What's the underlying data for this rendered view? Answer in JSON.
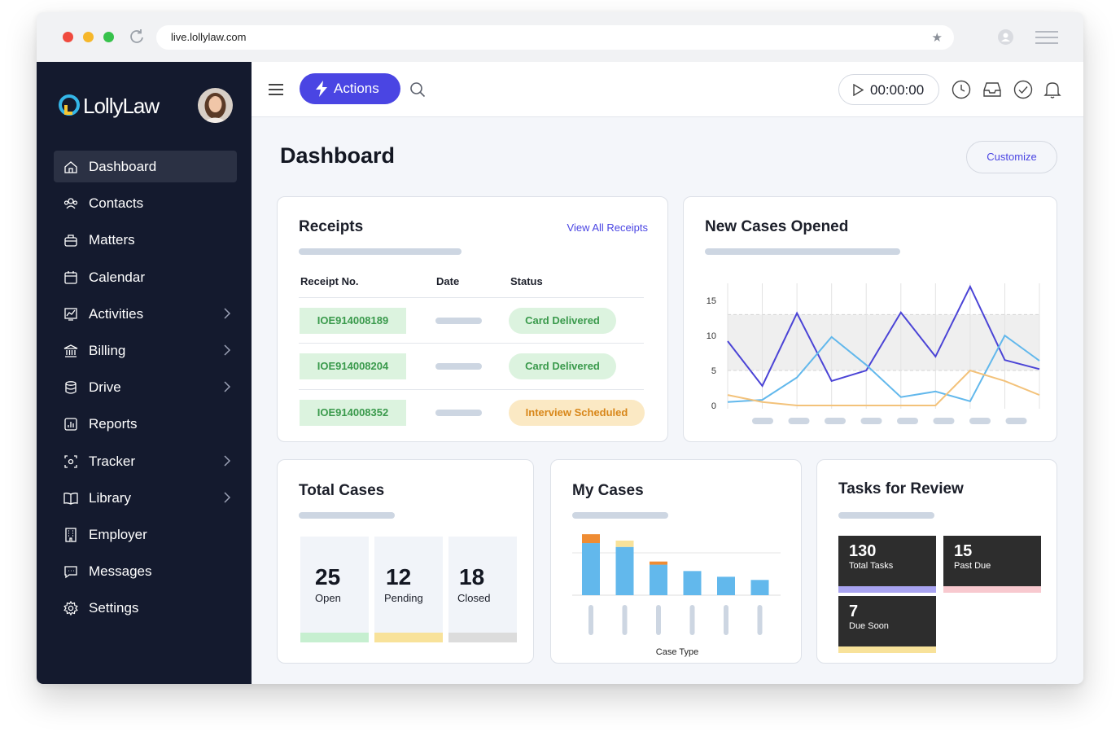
{
  "browser": {
    "url": "live.lollylaw.com",
    "dots": [
      "#f04a3e",
      "#f6b72a",
      "#37c24b"
    ]
  },
  "sidebar": {
    "logo_text": "LollyLaw",
    "items": [
      {
        "label": "Dashboard",
        "icon": "home-icon",
        "active": true,
        "chevron": false
      },
      {
        "label": "Contacts",
        "icon": "contacts-icon",
        "active": false,
        "chevron": false
      },
      {
        "label": "Matters",
        "icon": "briefcase-icon",
        "active": false,
        "chevron": false
      },
      {
        "label": "Calendar",
        "icon": "calendar-icon",
        "active": false,
        "chevron": false
      },
      {
        "label": "Activities",
        "icon": "activities-icon",
        "active": false,
        "chevron": true
      },
      {
        "label": "Billing",
        "icon": "bank-icon",
        "active": false,
        "chevron": true
      },
      {
        "label": "Drive",
        "icon": "database-icon",
        "active": false,
        "chevron": true
      },
      {
        "label": "Reports",
        "icon": "reports-icon",
        "active": false,
        "chevron": false
      },
      {
        "label": "Tracker",
        "icon": "tracker-icon",
        "active": false,
        "chevron": true
      },
      {
        "label": "Library",
        "icon": "book-icon",
        "active": false,
        "chevron": true
      },
      {
        "label": "Employer",
        "icon": "building-icon",
        "active": false,
        "chevron": false
      },
      {
        "label": "Messages",
        "icon": "chat-icon",
        "active": false,
        "chevron": false
      },
      {
        "label": "Settings",
        "icon": "gear-icon",
        "active": false,
        "chevron": false
      }
    ]
  },
  "topbar": {
    "actions_label": "Actions",
    "timer": "00:00:00",
    "accent": "#4a45e3"
  },
  "page": {
    "title": "Dashboard",
    "customize_label": "Customize"
  },
  "receipts": {
    "title": "Receipts",
    "view_all": "View All Receipts",
    "columns": [
      "Receipt No.",
      "Date",
      "Status"
    ],
    "rows": [
      {
        "receipt_no": "IOE914008189",
        "status": "Card Delivered",
        "tone": "green"
      },
      {
        "receipt_no": "IOE914008204",
        "status": "Card Delivered",
        "tone": "green"
      },
      {
        "receipt_no": "IOE914008352",
        "status": "Interview Scheduled",
        "tone": "orange"
      }
    ]
  },
  "new_cases": {
    "title": "New Cases Opened",
    "chart_data": {
      "type": "line",
      "y_ticks": [
        "15",
        "10",
        "5",
        "0"
      ],
      "ylim": [
        0,
        17
      ],
      "band": [
        5,
        13
      ],
      "x": [
        1,
        2,
        3,
        4,
        5,
        6,
        7,
        8,
        9,
        10
      ],
      "series": [
        {
          "color": "#4b44d6",
          "values": [
            9.2,
            2.8,
            13.2,
            3.5,
            5,
            13.3,
            7,
            17,
            6.5,
            5.2
          ]
        },
        {
          "color": "#62b8ec",
          "values": [
            0.5,
            0.8,
            4,
            9.8,
            5.8,
            1.2,
            2,
            0.6,
            10,
            6.4
          ]
        },
        {
          "color": "#f3c27a",
          "values": [
            1.5,
            0.5,
            0,
            0,
            0,
            0,
            0,
            5,
            3.5,
            1.5
          ]
        }
      ]
    }
  },
  "total_cases": {
    "title": "Total Cases",
    "boxes": [
      {
        "value": "25",
        "label": "Open",
        "color": "#c6efd0"
      },
      {
        "value": "12",
        "label": "Pending",
        "color": "#f8e29a"
      },
      {
        "value": "18",
        "label": "Closed",
        "color": "#dcdcdc"
      }
    ]
  },
  "my_cases": {
    "title": "My Cases",
    "chart_data": {
      "type": "bar",
      "xlabel": "Case Type",
      "ylim": [
        0,
        100
      ],
      "series": [
        {
          "color": "#62b8ec",
          "values": [
            82,
            76,
            48,
            38,
            29,
            24
          ]
        },
        {
          "color": "#ef8c33",
          "values": [
            14,
            0,
            5,
            0,
            0,
            0
          ]
        },
        {
          "color": "#f8e29a",
          "values": [
            0,
            10,
            0,
            0,
            0,
            0
          ]
        }
      ]
    }
  },
  "tasks": {
    "title": "Tasks for Review",
    "items": [
      {
        "value": "130",
        "label": "Total Tasks",
        "color": "#a8a3f0"
      },
      {
        "value": "15",
        "label": "Past Due",
        "color": "#f8c9cf"
      },
      {
        "value": "7",
        "label": "Due Soon",
        "color": "#f8e29a"
      }
    ]
  }
}
